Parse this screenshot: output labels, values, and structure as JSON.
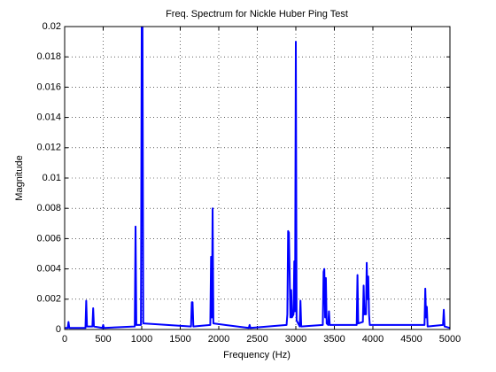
{
  "chart_data": {
    "type": "line",
    "title": "Freq. Spectrum for Nickle Huber Ping Test",
    "xlabel": "Frequency (Hz)",
    "ylabel": "Magnitude",
    "color": "#0000ff",
    "grid": true,
    "x": [
      0,
      40,
      50,
      60,
      270,
      280,
      290,
      360,
      370,
      380,
      490,
      500,
      510,
      900,
      910,
      920,
      930,
      990,
      1000,
      1010,
      1020,
      1640,
      1650,
      1660,
      1670,
      1890,
      1900,
      1910,
      1920,
      1930,
      2390,
      2400,
      2410,
      2880,
      2890,
      2900,
      2910,
      2930,
      2940,
      2950,
      2970,
      2980,
      2990,
      3000,
      3010,
      3050,
      3060,
      3070,
      3350,
      3360,
      3370,
      3380,
      3390,
      3400,
      3420,
      3430,
      3440,
      3790,
      3800,
      3810,
      3870,
      3880,
      3890,
      3910,
      3920,
      3930,
      3940,
      3950,
      3960,
      4670,
      4680,
      4690,
      4700,
      4710,
      4910,
      4920,
      4930,
      5000
    ],
    "values": [
      0.0001,
      0.0001,
      0.0005,
      0.0001,
      0.0001,
      0.0019,
      0.0002,
      0.0002,
      0.0014,
      0.0002,
      0.0001,
      0.0003,
      0.0001,
      0.0002,
      0.0002,
      0.0068,
      0.0003,
      0.0003,
      0.02,
      0.02,
      0.0004,
      0.0002,
      0.0018,
      0.0018,
      0.0002,
      0.0003,
      0.0048,
      0.0008,
      0.008,
      0.0004,
      0.0001,
      0.0003,
      0.0001,
      0.0003,
      0.001,
      0.0065,
      0.0064,
      0.0008,
      0.0026,
      0.0008,
      0.001,
      0.0045,
      0.0012,
      0.019,
      0.0006,
      0.0002,
      0.0019,
      0.0002,
      0.0003,
      0.0038,
      0.004,
      0.0008,
      0.0034,
      0.0004,
      0.0003,
      0.0012,
      0.0003,
      0.0003,
      0.0036,
      0.0004,
      0.0005,
      0.0029,
      0.001,
      0.001,
      0.0044,
      0.002,
      0.0035,
      0.001,
      0.0003,
      0.0003,
      0.0027,
      0.0008,
      0.0015,
      0.0002,
      0.0003,
      0.0013,
      0.0002,
      0.0001
    ],
    "xlim": [
      0,
      5000
    ],
    "xticks": [
      0,
      500,
      1000,
      1500,
      2000,
      2500,
      3000,
      3500,
      4000,
      4500,
      5000
    ],
    "ylim": [
      0,
      0.02
    ],
    "yticks": [
      0,
      0.002,
      0.004,
      0.006,
      0.008,
      0.01,
      0.012,
      0.014,
      0.016,
      0.018,
      0.02
    ]
  }
}
